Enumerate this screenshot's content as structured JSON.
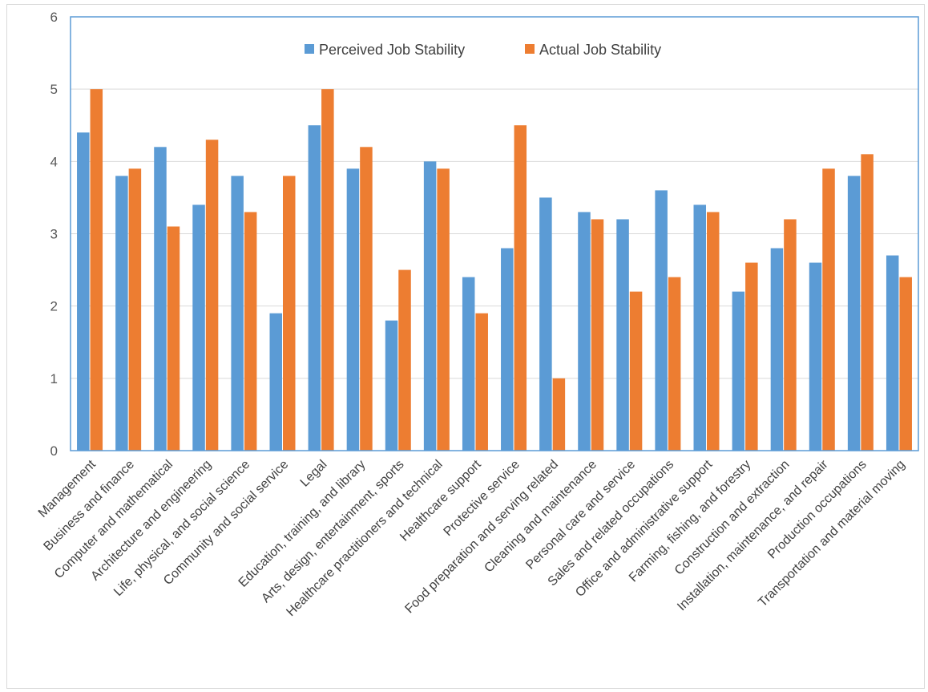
{
  "chart_data": {
    "type": "bar",
    "title": "",
    "xlabel": "",
    "ylabel": "",
    "ylim": [
      0,
      6
    ],
    "yticks": [
      0,
      1,
      2,
      3,
      4,
      5,
      6
    ],
    "grid": true,
    "legend_position": "top-center",
    "categories": [
      "Management",
      "Business and finance",
      "Computer and mathematical",
      "Architecture and engineering",
      "Life, physical, and social science",
      "Community and social service",
      "Legal",
      "Education, training, and library",
      "Arts, design, entertainment, sports",
      "Healthcare practitioners and technical",
      "Healthcare support",
      "Protective service",
      "Food preparation and serving related",
      "Cleaning and maintenance",
      "Personal care and service",
      "Sales and related occupations",
      "Office and administrative support",
      "Farming, fishing, and forestry",
      "Construction and extraction",
      "Installation, maintenance, and repair",
      "Production occupations",
      "Transportation and material moving"
    ],
    "series": [
      {
        "name": "Perceived Job Stability",
        "color": "#5b9bd5",
        "values": [
          4.4,
          3.8,
          4.2,
          3.4,
          3.8,
          1.9,
          4.5,
          3.9,
          1.8,
          4.0,
          2.4,
          2.8,
          3.5,
          3.3,
          3.2,
          3.6,
          3.4,
          2.2,
          2.8,
          2.6,
          3.8,
          2.7
        ]
      },
      {
        "name": "Actual Job Stability",
        "color": "#ed7d31",
        "values": [
          5.0,
          3.9,
          3.1,
          4.3,
          3.3,
          3.8,
          5.0,
          4.2,
          2.5,
          3.9,
          1.9,
          4.5,
          1.0,
          3.2,
          2.2,
          2.4,
          3.3,
          2.6,
          3.2,
          3.9,
          4.1,
          2.4
        ]
      }
    ],
    "colors": {
      "plot_border": "#5b9bd5",
      "gridline": "#d9d9d9",
      "axis": "#bfbfbf"
    }
  }
}
